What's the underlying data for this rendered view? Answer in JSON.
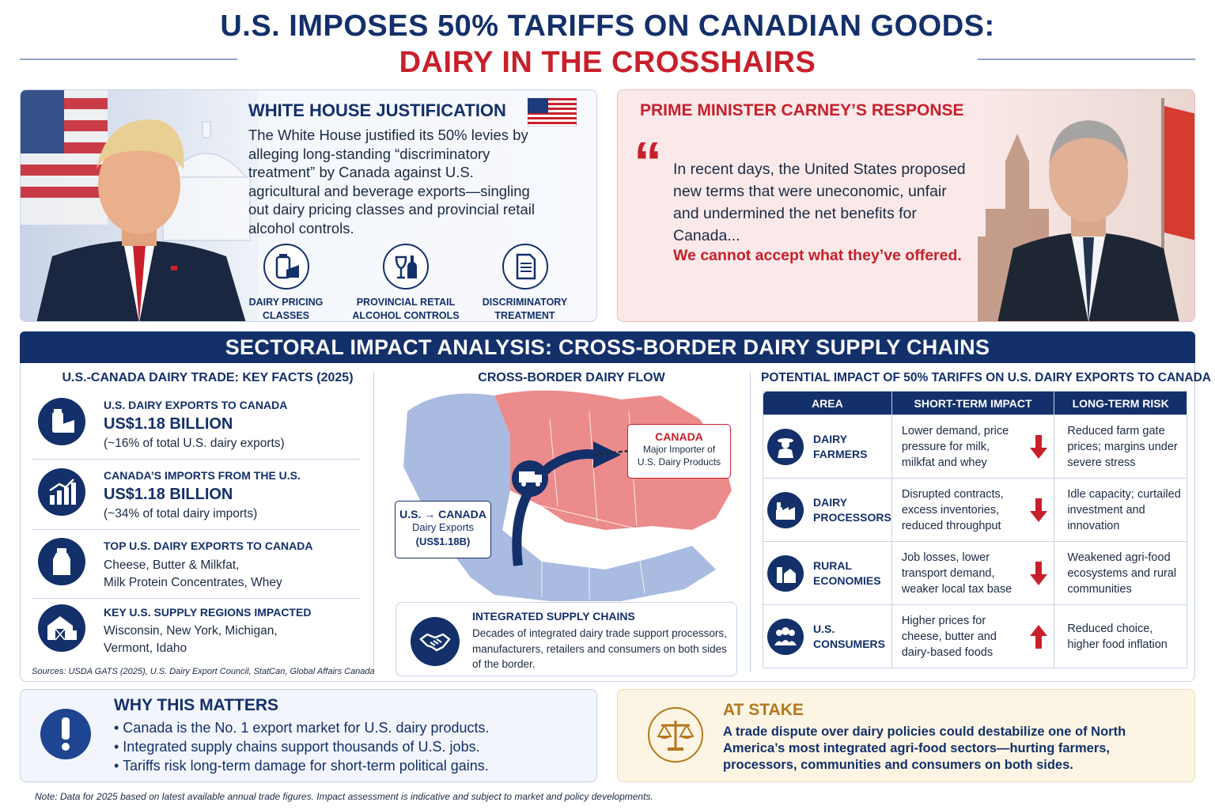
{
  "header": {
    "line1": "U.S. IMPOSES 50% TARIFFS ON CANADIAN GOODS:",
    "line2": "DAIRY IN THE CROSSHAIRS"
  },
  "white_house": {
    "title": "WHITE HOUSE JUSTIFICATION",
    "body": "The White House justified its 50% levies by alleging long-standing “discriminatory treatment” by Canada against U.S. agricultural and beverage exports—singling out dairy pricing classes and provincial retail alcohol controls.",
    "icons": [
      {
        "icon": "milk-cheese-icon",
        "label1": "DAIRY PRICING",
        "label2": "CLASSES"
      },
      {
        "icon": "wine-bottle-icon",
        "label1": "PROVINCIAL RETAIL",
        "label2": "ALCOHOL CONTROLS"
      },
      {
        "icon": "document-icon",
        "label1": "DISCRIMINATORY",
        "label2": "TREATMENT"
      }
    ]
  },
  "carney": {
    "title": "PRIME MINISTER CARNEY’S RESPONSE",
    "quote_mark": "“",
    "quote": "In recent days, the United States proposed new terms that were uneconomic, unfair and undermined the net benefits for Canada...",
    "quote_emphasis": "We cannot accept what they’ve offered."
  },
  "sectoral": {
    "banner": "SECTORAL IMPACT ANALYSIS: CROSS-BORDER DAIRY SUPPLY CHAINS",
    "facts_title": "U.S.-CANADA DAIRY TRADE: KEY FACTS (2025)",
    "facts": [
      {
        "icon": "milk-cheese-icon",
        "label": "U.S. DAIRY EXPORTS TO CANADA",
        "value": "US$1.18 BILLION",
        "sub": "(~16% of total U.S. dairy exports)"
      },
      {
        "icon": "bar-chart-icon",
        "label": "CANADA’S IMPORTS FROM THE U.S.",
        "value": "US$1.18 BILLION",
        "sub": "(~34% of total dairy imports)"
      },
      {
        "icon": "milk-bottle-icon",
        "label": "TOP U.S. DAIRY EXPORTS TO CANADA",
        "line1": "Cheese, Butter & Milkfat,",
        "line2": "Milk Protein Concentrates, Whey"
      },
      {
        "icon": "barn-icon",
        "label": "KEY U.S. SUPPLY REGIONS IMPACTED",
        "line1": "Wisconsin, New York, Michigan,",
        "line2": "Vermont, Idaho"
      }
    ],
    "sources": "Sources: USDA GATS (2025), U.S. Dairy Export Council, StatCan, Global Affairs Canada",
    "flow_title": "CROSS-BORDER DAIRY FLOW",
    "flow_canada_label": "CANADA",
    "flow_canada_sub1": "Major Importer of",
    "flow_canada_sub2": "U.S. Dairy Products",
    "flow_us_label": "U.S. → CANADA",
    "flow_us_sub1": "Dairy Exports",
    "flow_us_sub2": "(US$1.18B)",
    "integrated_title": "INTEGRATED SUPPLY CHAINS",
    "integrated_body": "Decades of integrated dairy trade support processors, manufacturers, retailers and consumers on both sides of the border.",
    "impact_title": "POTENTIAL IMPACT OF 50% TARIFFS ON U.S. DAIRY EXPORTS TO CANADA",
    "impact_headers": [
      "AREA",
      "SHORT-TERM IMPACT",
      "LONG-TERM RISK"
    ],
    "impact_rows": [
      {
        "icon": "farmer-icon",
        "area1": "DAIRY",
        "area2": "FARMERS",
        "short": "Lower demand, price pressure for milk, milkfat and whey",
        "direction": "down",
        "long": "Reduced farm gate prices; margins under severe stress"
      },
      {
        "icon": "factory-icon",
        "area1": "DAIRY",
        "area2": "PROCESSORS",
        "short": "Disrupted contracts, excess inventories, reduced throughput",
        "direction": "down",
        "long": "Idle capacity; curtailed investment and innovation"
      },
      {
        "icon": "rural-icon",
        "area1": "RURAL",
        "area2": "ECONOMIES",
        "short": "Job losses, lower transport demand, weaker local tax base",
        "direction": "down",
        "long": "Weakened agri-food ecosystems and rural communities"
      },
      {
        "icon": "consumers-icon",
        "area1": "U.S.",
        "area2": "CONSUMERS",
        "short": "Higher prices for cheese, butter and dairy-based foods",
        "direction": "up",
        "long": "Reduced choice, higher food inflation"
      }
    ]
  },
  "why": {
    "title": "WHY THIS MATTERS",
    "bullets": [
      "• Canada is the No. 1 export market for U.S. dairy products.",
      "• Integrated supply chains support thousands of U.S. jobs.",
      "• Tariffs risk long-term damage for short-term political gains."
    ]
  },
  "stake": {
    "title": "AT STAKE",
    "body": "A trade dispute over dairy policies could destabilize one of North America’s most integrated agri-food sectors—hurting farmers, processors, communities and consumers on both sides."
  },
  "note": "Note: Data for 2025 based on latest available annual trade figures. Impact assessment is indicative and subject to market and policy developments.",
  "colors": {
    "navy": "#13306b",
    "red": "#c8202b",
    "gold": "#b5781c"
  }
}
